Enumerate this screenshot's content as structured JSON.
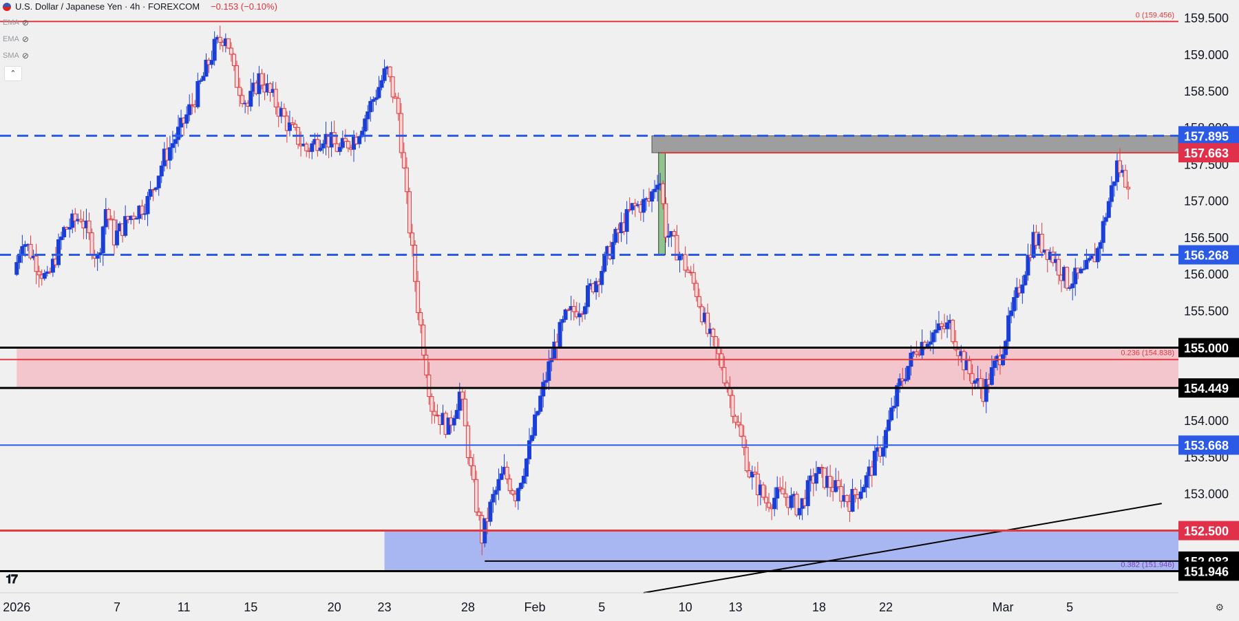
{
  "header": {
    "symbol": "U.S. Dollar / Japanese Yen · 4h · FOREXCOM",
    "change": "−0.153 (−0.10%)"
  },
  "indicators": [
    "EMA",
    "EMA",
    "SMA"
  ],
  "colors": {
    "bg": "#f0f0f0",
    "up": "#1a3fd6",
    "down": "#e03a3e",
    "blue_line": "#2b5be6",
    "red_line": "#e03a3e",
    "black_line": "#000000",
    "pink_zone": "#f2c6cc",
    "blue_zone": "#a8b7f2",
    "grey_zone": "#9e9e9e",
    "green_box": "#8fc48f"
  },
  "chart_data": {
    "type": "candlestick",
    "title": "U.S. Dollar / Japanese Yen · 4h · FOREXCOM",
    "ylim": [
      151.65,
      159.75
    ],
    "y_ticks": [
      159.5,
      159.0,
      158.5,
      158.0,
      157.5,
      157.0,
      156.5,
      156.0,
      155.5,
      155.0,
      154.5,
      154.0,
      153.5,
      153.0
    ],
    "y_tick_labels": [
      "159.500",
      "159.000",
      "158.500",
      "158.000",
      "157.500",
      "157.000",
      "156.500",
      "156.000",
      "155.500",
      "155.000",
      "154.500",
      "154.000",
      "153.500",
      "153.000"
    ],
    "x_ticks": [
      {
        "label": "2026",
        "day": 0
      },
      {
        "label": "7",
        "day": 6
      },
      {
        "label": "11",
        "day": 10
      },
      {
        "label": "15",
        "day": 14
      },
      {
        "label": "20",
        "day": 19
      },
      {
        "label": "23",
        "day": 22
      },
      {
        "label": "28",
        "day": 27
      },
      {
        "label": "Feb",
        "day": 31
      },
      {
        "label": "5",
        "day": 35
      },
      {
        "label": "10",
        "day": 40
      },
      {
        "label": "13",
        "day": 43
      },
      {
        "label": "18",
        "day": 48
      },
      {
        "label": "22",
        "day": 52
      },
      {
        "label": "Mar",
        "day": 59
      },
      {
        "label": "5",
        "day": 63
      }
    ],
    "anchors": [
      {
        "day": 0,
        "price": 156.0
      },
      {
        "day": 0.5,
        "price": 156.5
      },
      {
        "day": 2,
        "price": 155.9
      },
      {
        "day": 3,
        "price": 156.6
      },
      {
        "day": 4,
        "price": 156.8
      },
      {
        "day": 5,
        "price": 156.2
      },
      {
        "day": 5.5,
        "price": 156.9
      },
      {
        "day": 6,
        "price": 156.5
      },
      {
        "day": 7,
        "price": 156.8
      },
      {
        "day": 8,
        "price": 157.0
      },
      {
        "day": 9,
        "price": 157.6
      },
      {
        "day": 10,
        "price": 158.0
      },
      {
        "day": 11,
        "price": 158.5
      },
      {
        "day": 12,
        "price": 159.1
      },
      {
        "day": 12.7,
        "price": 159.3
      },
      {
        "day": 13.2,
        "price": 158.7
      },
      {
        "day": 14,
        "price": 158.3
      },
      {
        "day": 14.7,
        "price": 158.7
      },
      {
        "day": 15.5,
        "price": 158.4
      },
      {
        "day": 16.5,
        "price": 158.0
      },
      {
        "day": 17.5,
        "price": 157.7
      },
      {
        "day": 18.5,
        "price": 157.9
      },
      {
        "day": 19.5,
        "price": 157.7
      },
      {
        "day": 20.5,
        "price": 157.9
      },
      {
        "day": 21.5,
        "price": 158.4
      },
      {
        "day": 22.3,
        "price": 158.8
      },
      {
        "day": 23,
        "price": 158.2
      },
      {
        "day": 23.5,
        "price": 157.0
      },
      {
        "day": 24.2,
        "price": 155.5
      },
      {
        "day": 25,
        "price": 154.2
      },
      {
        "day": 26,
        "price": 153.9
      },
      {
        "day": 26.7,
        "price": 154.4
      },
      {
        "day": 27.4,
        "price": 153.2
      },
      {
        "day": 28.0,
        "price": 152.4
      },
      {
        "day": 28.6,
        "price": 152.9
      },
      {
        "day": 29.3,
        "price": 153.3
      },
      {
        "day": 30,
        "price": 153.0
      },
      {
        "day": 30.7,
        "price": 153.5
      },
      {
        "day": 31.5,
        "price": 154.3
      },
      {
        "day": 32.3,
        "price": 155.0
      },
      {
        "day": 33,
        "price": 155.4
      },
      {
        "day": 34,
        "price": 155.6
      },
      {
        "day": 35,
        "price": 156.0
      },
      {
        "day": 36,
        "price": 156.5
      },
      {
        "day": 37,
        "price": 156.9
      },
      {
        "day": 38,
        "price": 157.0
      },
      {
        "day": 38.6,
        "price": 157.4
      },
      {
        "day": 39,
        "price": 156.6
      },
      {
        "day": 40,
        "price": 156.2
      },
      {
        "day": 40.8,
        "price": 155.8
      },
      {
        "day": 41.5,
        "price": 155.2
      },
      {
        "day": 42.3,
        "price": 154.8
      },
      {
        "day": 43,
        "price": 154.2
      },
      {
        "day": 44,
        "price": 153.3
      },
      {
        "day": 45,
        "price": 152.9
      },
      {
        "day": 46,
        "price": 153.0
      },
      {
        "day": 47,
        "price": 152.8
      },
      {
        "day": 48,
        "price": 153.3
      },
      {
        "day": 49,
        "price": 153.1
      },
      {
        "day": 50,
        "price": 152.9
      },
      {
        "day": 51,
        "price": 153.2
      },
      {
        "day": 52,
        "price": 153.7
      },
      {
        "day": 53,
        "price": 154.5
      },
      {
        "day": 54,
        "price": 155.0
      },
      {
        "day": 55,
        "price": 155.2
      },
      {
        "day": 56,
        "price": 155.3
      },
      {
        "day": 57,
        "price": 154.7
      },
      {
        "day": 58,
        "price": 154.4
      },
      {
        "day": 59,
        "price": 154.9
      },
      {
        "day": 60,
        "price": 155.7
      },
      {
        "day": 61,
        "price": 156.5
      },
      {
        "day": 62,
        "price": 156.3
      },
      {
        "day": 63,
        "price": 155.9
      },
      {
        "day": 64,
        "price": 156.0
      },
      {
        "day": 64.8,
        "price": 156.3
      },
      {
        "day": 65.5,
        "price": 157.0
      },
      {
        "day": 66,
        "price": 157.5
      },
      {
        "day": 66.5,
        "price": 157.3
      }
    ],
    "hlines": [
      {
        "price": 159.456,
        "color": "#e03a3e",
        "style": "solid",
        "width": 2,
        "label": "0 (159.456)",
        "label_color": "#e03a3e"
      },
      {
        "price": 157.895,
        "color": "#2b5be6",
        "style": "dashed",
        "width": 3,
        "axis_label": "157.895",
        "axis_bg": "#2b5be6"
      },
      {
        "price": 157.663,
        "color": "#e03a3e",
        "style": "solid",
        "width": 2,
        "axis_label": "157.663",
        "axis_bg": "#e0304a",
        "start_day": 38.5
      },
      {
        "price": 156.268,
        "color": "#2b5be6",
        "style": "dashed",
        "width": 3,
        "axis_label": "156.268",
        "axis_bg": "#2b5be6"
      },
      {
        "price": 155.0,
        "color": "#000000",
        "style": "solid",
        "width": 3,
        "axis_label": "155.000",
        "axis_bg": "#000000"
      },
      {
        "price": 154.838,
        "color": "#e03a3e",
        "style": "solid",
        "width": 2,
        "label": "0.236 (154.838)",
        "label_color": "#e03a3e"
      },
      {
        "price": 154.449,
        "color": "#000000",
        "style": "solid",
        "width": 3,
        "axis_label": "154.449",
        "axis_bg": "#000000"
      },
      {
        "price": 153.668,
        "color": "#2b5be6",
        "style": "solid",
        "width": 2,
        "axis_label": "153.668",
        "axis_bg": "#2b5be6"
      },
      {
        "price": 152.5,
        "color": "#e03a3e",
        "style": "solid",
        "width": 3,
        "axis_label": "152.500",
        "axis_bg": "#e0304a"
      },
      {
        "price": 152.083,
        "color": "#000000",
        "style": "solid",
        "width": 2,
        "axis_label": "152.083",
        "axis_bg": "#000000",
        "start_day": 28.0
      },
      {
        "price": 151.946,
        "color": "#000000",
        "style": "solid",
        "width": 3,
        "label": "0.382 (151.946)",
        "label_color": "#7a3fbf",
        "axis_label": "151.946",
        "axis_bg": "#000000"
      }
    ],
    "zones": [
      {
        "from": 154.449,
        "to": 155.0,
        "start_day": 0,
        "color": "#f2c6cc"
      },
      {
        "from": 151.946,
        "to": 152.5,
        "start_day": 22.0,
        "color": "#a8b7f2"
      },
      {
        "from": 157.663,
        "to": 157.895,
        "start_day": 38.0,
        "color": "#9e9e9e"
      }
    ],
    "boxes": [
      {
        "start_day": 38.4,
        "end_day": 38.8,
        "from": 156.268,
        "to": 157.663,
        "color": "#8fc48f"
      }
    ],
    "trendline": {
      "start_day": 37.5,
      "start_price": 151.65,
      "end_day": 68.5,
      "end_price": 152.87,
      "color": "#000000"
    }
  }
}
